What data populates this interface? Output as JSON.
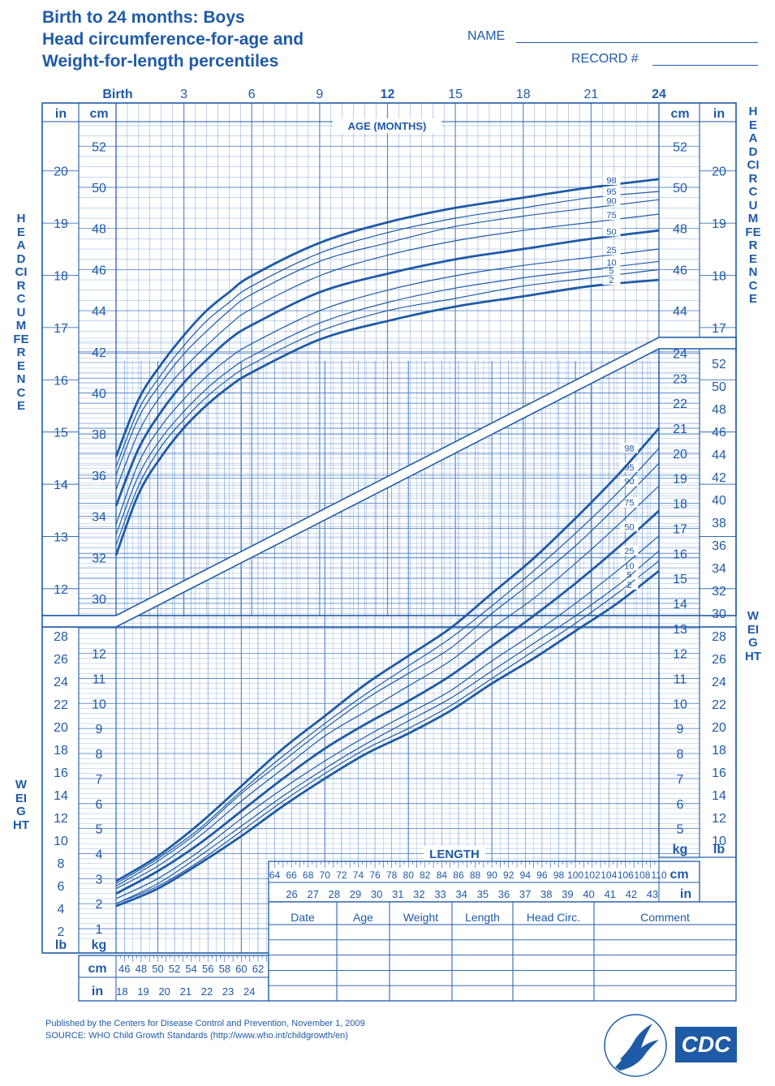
{
  "header": {
    "title_line1": "Birth to 24 months: Boys",
    "title_line2": "Head circumference-for-age and",
    "title_line3": "Weight-for-length percentiles",
    "name_label": "NAME",
    "record_label": "RECORD #"
  },
  "side_labels": {
    "head_circumference": "HEAD CIRCUMFERENCE",
    "weight": "WEIGHT"
  },
  "footer": {
    "line1": "Published by the Centers for Disease Control and Prevention, November 1, 2009",
    "line2": "SOURCE:  WHO Child Growth Standards (http://www.who.int/childgrowth/en)"
  },
  "logos": {
    "hhs": "hhs-eagle-seal-icon",
    "cdc_text": "CDC"
  },
  "colors": {
    "ink": "#1f5aa6",
    "grid": "#5b8ccc"
  },
  "table": {
    "headers": [
      "Date",
      "Age",
      "Weight",
      "Length",
      "Head  Circ.",
      "Comment"
    ],
    "rows": 5
  },
  "chart_data": [
    {
      "type": "line",
      "title": "Head circumference-for-age",
      "xlabel": "AGE (MONTHS)",
      "x_ticks": [
        "Birth",
        "3",
        "6",
        "9",
        "12",
        "15",
        "18",
        "21",
        "24"
      ],
      "ylabel": "HEAD CIRCUMFERENCE",
      "y_unit_cm": "cm",
      "y_unit_in": "in",
      "y_ticks_cm": [
        30,
        32,
        34,
        36,
        38,
        40,
        42,
        44,
        46,
        48,
        50,
        52
      ],
      "y_ticks_in": [
        12,
        13,
        14,
        15,
        16,
        17,
        18,
        19,
        20
      ],
      "xlim": [
        0,
        24
      ],
      "ylim": [
        29,
        53
      ],
      "x": [
        0,
        1,
        2,
        3,
        4,
        5,
        6,
        9,
        12,
        15,
        18,
        21,
        24
      ],
      "series": [
        {
          "name": "2",
          "values": [
            32.1,
            35.1,
            36.9,
            38.3,
            39.4,
            40.3,
            41.0,
            42.6,
            43.5,
            44.2,
            44.7,
            45.2,
            45.5
          ]
        },
        {
          "name": "5",
          "values": [
            32.6,
            35.5,
            37.4,
            38.7,
            39.8,
            40.7,
            41.4,
            43.0,
            44.0,
            44.6,
            45.2,
            45.6,
            46.0
          ]
        },
        {
          "name": "10",
          "values": [
            33.1,
            36.0,
            37.8,
            39.1,
            40.2,
            41.1,
            41.8,
            43.4,
            44.4,
            45.1,
            45.6,
            46.0,
            46.4
          ]
        },
        {
          "name": "25",
          "values": [
            33.6,
            36.6,
            38.4,
            39.7,
            40.8,
            41.7,
            42.4,
            44.0,
            45.0,
            45.7,
            46.2,
            46.6,
            47.0
          ]
        },
        {
          "name": "50",
          "values": [
            34.5,
            37.3,
            39.1,
            40.5,
            41.6,
            42.6,
            43.3,
            44.9,
            45.8,
            46.5,
            47.0,
            47.5,
            47.9
          ]
        },
        {
          "name": "75",
          "values": [
            35.3,
            38.1,
            39.9,
            41.2,
            42.3,
            43.3,
            44.1,
            45.7,
            46.7,
            47.4,
            47.9,
            48.3,
            48.7
          ]
        },
        {
          "name": "90",
          "values": [
            36.0,
            38.8,
            40.5,
            41.9,
            43.0,
            44.0,
            44.8,
            46.4,
            47.3,
            48.1,
            48.6,
            49.0,
            49.4
          ]
        },
        {
          "name": "95",
          "values": [
            36.4,
            39.2,
            40.9,
            42.3,
            43.5,
            44.4,
            45.2,
            46.8,
            47.8,
            48.5,
            49.0,
            49.5,
            49.8
          ]
        },
        {
          "name": "98",
          "values": [
            36.9,
            39.7,
            41.4,
            42.8,
            44.0,
            44.9,
            45.7,
            47.3,
            48.3,
            49.0,
            49.5,
            50.0,
            50.4
          ]
        }
      ]
    },
    {
      "type": "line",
      "title": "Weight-for-length",
      "xlabel": "LENGTH",
      "x_unit_cm": "cm",
      "x_unit_in": "in",
      "x_ticks_cm": [
        46,
        48,
        50,
        52,
        54,
        56,
        58,
        60,
        62,
        64,
        66,
        68,
        70,
        72,
        74,
        76,
        78,
        80,
        82,
        84,
        86,
        88,
        90,
        92,
        94,
        96,
        98,
        100,
        102,
        104,
        106,
        108,
        110
      ],
      "x_ticks_in": [
        18,
        19,
        20,
        21,
        22,
        23,
        24,
        26,
        27,
        28,
        29,
        30,
        31,
        32,
        33,
        34,
        35,
        36,
        37,
        38,
        39,
        40,
        41,
        42,
        43
      ],
      "ylabel": "WEIGHT",
      "y_unit_kg": "kg",
      "y_unit_lb": "lb",
      "y_ticks_kg": [
        1,
        2,
        3,
        4,
        5,
        6,
        7,
        8,
        9,
        10,
        11,
        12,
        13,
        14,
        15,
        16,
        17,
        18,
        19,
        20,
        21,
        22,
        23,
        24
      ],
      "y_ticks_lb": [
        2,
        4,
        6,
        8,
        10,
        12,
        14,
        16,
        18,
        20,
        22,
        24,
        26,
        28,
        30,
        32,
        34,
        36,
        38,
        40,
        42,
        44,
        46,
        48,
        50,
        52
      ],
      "xlim": [
        45,
        110
      ],
      "ylim": [
        0,
        24.5
      ],
      "x": [
        45,
        50,
        55,
        60,
        65,
        70,
        75,
        80,
        85,
        90,
        95,
        100,
        105,
        110
      ],
      "series": [
        {
          "name": "2",
          "values": [
            1.9,
            2.6,
            3.6,
            4.7,
            5.9,
            7.0,
            8.0,
            8.8,
            9.7,
            10.8,
            11.8,
            12.9,
            14.0,
            15.3
          ]
        },
        {
          "name": "5",
          "values": [
            2.0,
            2.7,
            3.7,
            4.9,
            6.1,
            7.2,
            8.2,
            9.0,
            9.9,
            11.0,
            12.1,
            13.2,
            14.4,
            15.7
          ]
        },
        {
          "name": "10",
          "values": [
            2.0,
            2.8,
            3.9,
            5.1,
            6.3,
            7.4,
            8.4,
            9.3,
            10.2,
            11.3,
            12.4,
            13.5,
            14.7,
            16.1
          ]
        },
        {
          "name": "25",
          "values": [
            2.2,
            3.0,
            4.1,
            5.4,
            6.6,
            7.7,
            8.7,
            9.6,
            10.5,
            11.7,
            12.8,
            14.0,
            15.3,
            16.7
          ]
        },
        {
          "name": "50",
          "values": [
            2.4,
            3.3,
            4.4,
            5.7,
            7.0,
            8.2,
            9.2,
            10.1,
            11.1,
            12.3,
            13.5,
            14.8,
            16.2,
            17.7
          ]
        },
        {
          "name": "75",
          "values": [
            2.6,
            3.5,
            4.7,
            6.1,
            7.4,
            8.7,
            9.7,
            10.7,
            11.7,
            13.0,
            14.2,
            15.6,
            17.1,
            18.7
          ]
        },
        {
          "name": "90",
          "values": [
            2.7,
            3.7,
            4.9,
            6.4,
            7.7,
            9.0,
            10.2,
            11.2,
            12.2,
            13.6,
            14.9,
            16.3,
            17.9,
            19.6
          ]
        },
        {
          "name": "95",
          "values": [
            2.8,
            3.8,
            5.0,
            6.5,
            7.9,
            9.2,
            10.4,
            11.5,
            12.6,
            13.9,
            15.3,
            16.8,
            18.4,
            20.2
          ]
        },
        {
          "name": "98",
          "values": [
            2.9,
            3.9,
            5.2,
            6.7,
            8.2,
            9.5,
            10.8,
            11.9,
            13.0,
            14.4,
            15.8,
            17.4,
            19.1,
            21.0
          ]
        }
      ]
    }
  ]
}
